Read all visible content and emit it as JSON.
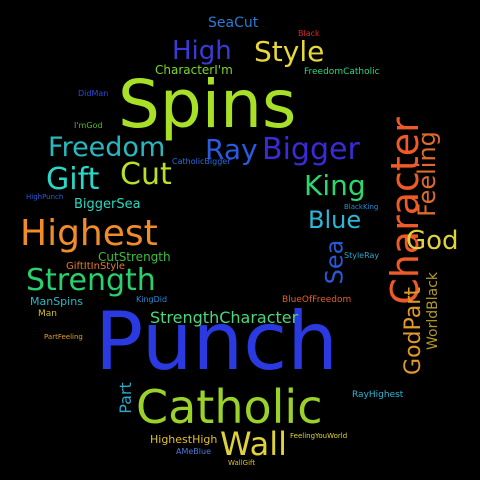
{
  "background": "#000000",
  "words": [
    {
      "text": "Spins",
      "color": "#a8e028"
    },
    {
      "text": "Punch",
      "color": "#2a3ae0"
    },
    {
      "text": "Catholic",
      "color": "#9ad22a"
    },
    {
      "text": "Character",
      "color": "#ef5a28"
    },
    {
      "text": "Highest",
      "color": "#f08c2a"
    },
    {
      "text": "Strength",
      "color": "#2ad06c"
    },
    {
      "text": "Wall",
      "color": "#e0d23a"
    },
    {
      "text": "Bigger",
      "color": "#3a2ad8"
    },
    {
      "text": "Style",
      "color": "#e8d83a"
    },
    {
      "text": "Freedom",
      "color": "#2ab8c0"
    },
    {
      "text": "Gift",
      "color": "#2ad8c8"
    },
    {
      "text": "Cut",
      "color": "#b8e02a"
    },
    {
      "text": "King",
      "color": "#2ad870"
    },
    {
      "text": "Ray",
      "color": "#2a5ae0"
    },
    {
      "text": "High",
      "color": "#3a3ad8"
    },
    {
      "text": "Blue",
      "color": "#2ab8d8"
    },
    {
      "text": "God",
      "color": "#e0d23a"
    },
    {
      "text": "Sea",
      "color": "#2a58d8"
    },
    {
      "text": "Feeling",
      "color": "#e06a2a"
    },
    {
      "text": "GodPart",
      "color": "#e09a2a"
    },
    {
      "text": "WorldBlack",
      "color": "#b0982a"
    },
    {
      "text": "Part",
      "color": "#2aa8c8"
    },
    {
      "text": "StrengthCharacter",
      "color": "#4ad87a"
    },
    {
      "text": "SeaCut",
      "color": "#2a7ad8"
    },
    {
      "text": "Black",
      "color": "#d82a2a"
    },
    {
      "text": "CharacterI'm",
      "color": "#7ad82a"
    },
    {
      "text": "FreedomCatholic",
      "color": "#2ad87a"
    },
    {
      "text": "DidMan",
      "color": "#2a4ad8"
    },
    {
      "text": "I'mGod",
      "color": "#5ab82a"
    },
    {
      "text": "CatholicBigger",
      "color": "#2a6ae0"
    },
    {
      "text": "HighPunch",
      "color": "#2a5ad8"
    },
    {
      "text": "BiggerSea",
      "color": "#2ad8c0"
    },
    {
      "text": "BlackKing",
      "color": "#2a8ad8"
    },
    {
      "text": "CutStrength",
      "color": "#3ac03a"
    },
    {
      "text": "GiftItInStyle",
      "color": "#e07a2a"
    },
    {
      "text": "KingDid",
      "color": "#2a8ad8"
    },
    {
      "text": "StyleRay",
      "color": "#2aa8c8"
    },
    {
      "text": "ManSpins",
      "color": "#2ab8c8"
    },
    {
      "text": "BlueOfFreedom",
      "color": "#e0602a"
    },
    {
      "text": "Man",
      "color": "#d0c02a"
    },
    {
      "text": "PartFeeling",
      "color": "#e0a02a"
    },
    {
      "text": "RayHighest",
      "color": "#2ab8d8"
    },
    {
      "text": "HighestHigh",
      "color": "#e0c02a"
    },
    {
      "text": "FeelingYouWorld",
      "color": "#e0d23a"
    },
    {
      "text": "AMeBlue",
      "color": "#4a7ad8"
    },
    {
      "text": "WallGift",
      "color": "#e0c02a"
    }
  ]
}
